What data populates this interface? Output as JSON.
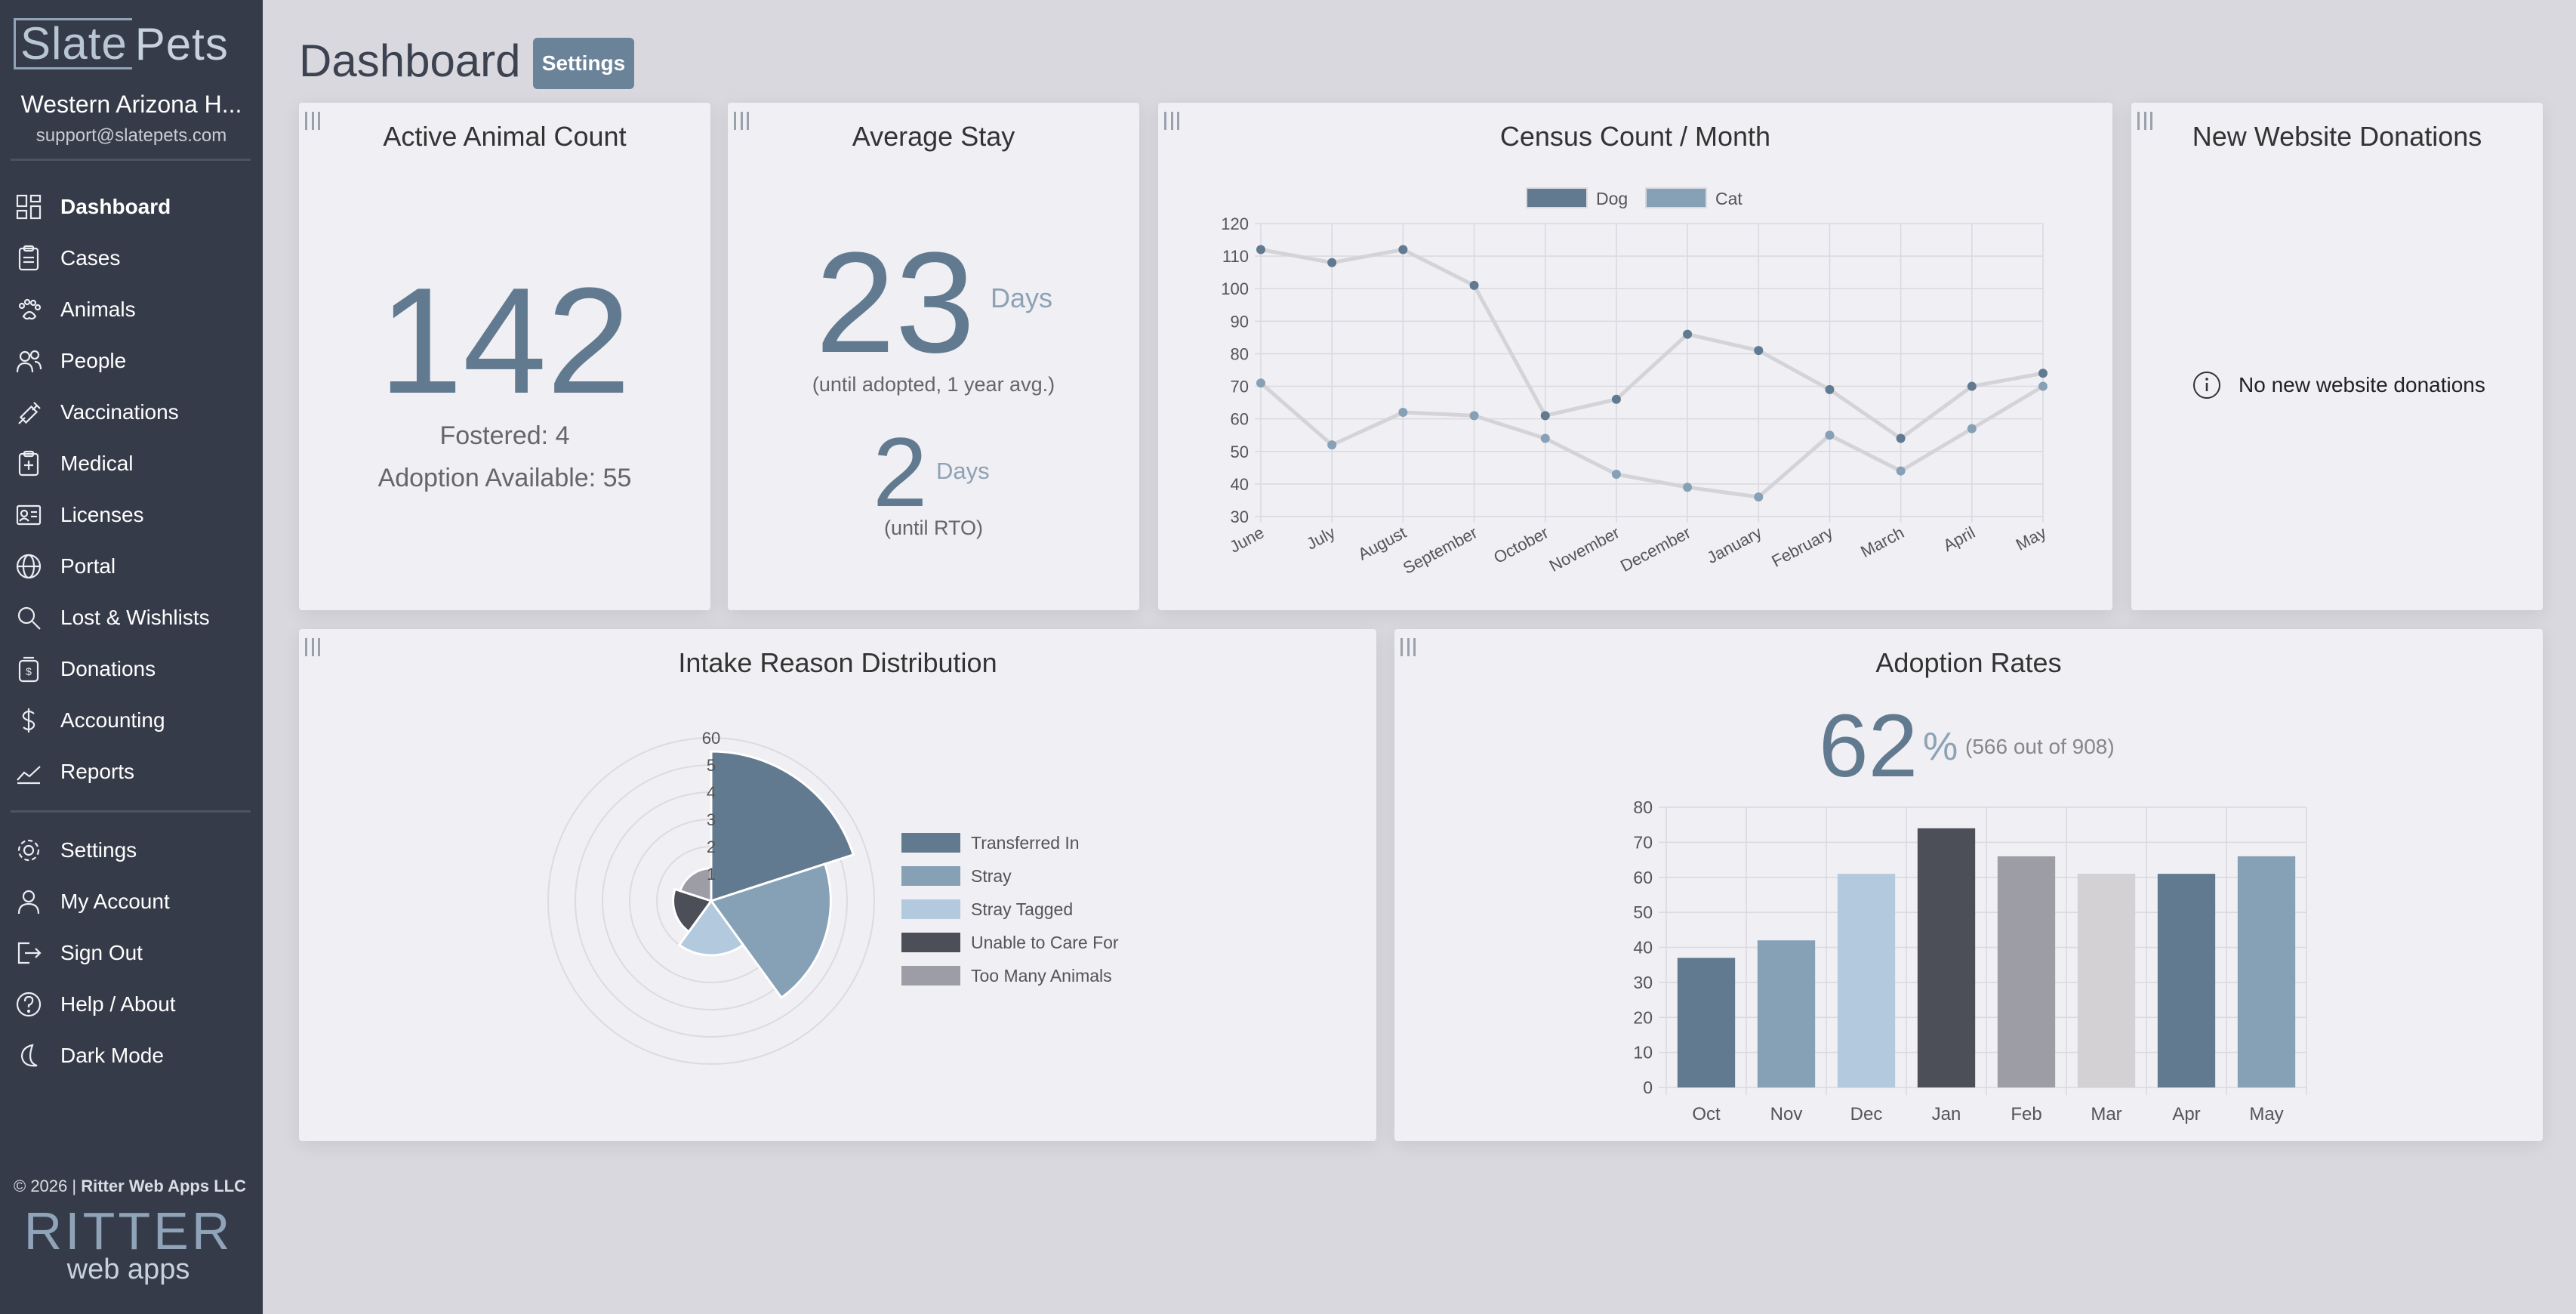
{
  "sidebar": {
    "logo_left": "Slate",
    "logo_right": "Pets",
    "org_name": "Western Arizona H...",
    "org_email": "support@slatepets.com",
    "nav": [
      {
        "label": "Dashboard",
        "icon": "dashboard-icon"
      },
      {
        "label": "Cases",
        "icon": "clipboard-icon"
      },
      {
        "label": "Animals",
        "icon": "paw-icon"
      },
      {
        "label": "People",
        "icon": "people-icon"
      },
      {
        "label": "Vaccinations",
        "icon": "syringe-icon"
      },
      {
        "label": "Medical",
        "icon": "medical-icon"
      },
      {
        "label": "Licenses",
        "icon": "license-icon"
      },
      {
        "label": "Portal",
        "icon": "globe-icon"
      },
      {
        "label": "Lost & Wishlists",
        "icon": "search-icon"
      },
      {
        "label": "Donations",
        "icon": "donation-icon"
      },
      {
        "label": "Accounting",
        "icon": "dollar-icon"
      },
      {
        "label": "Reports",
        "icon": "chart-icon"
      }
    ],
    "nav2": [
      {
        "label": "Settings",
        "icon": "gear-icon"
      },
      {
        "label": "My Account",
        "icon": "user-icon"
      },
      {
        "label": "Sign Out",
        "icon": "sign-out-icon"
      },
      {
        "label": "Help / About",
        "icon": "help-icon"
      },
      {
        "label": "Dark Mode",
        "icon": "moon-icon"
      }
    ],
    "copyright_prefix": "© 2026 | ",
    "copyright_company": "Ritter Web Apps LLC",
    "brand_big": "RITTER",
    "brand_small": "web apps"
  },
  "header": {
    "title": "Dashboard",
    "settings_label": "Settings"
  },
  "cards": {
    "active": {
      "title": "Active Animal Count",
      "count": "142",
      "fostered": "Fostered: 4",
      "adoption": "Adoption Available: 55"
    },
    "stay": {
      "title": "Average Stay",
      "adopted_days": "23",
      "adopted_unit": "Days",
      "adopted_note": "(until adopted, 1 year avg.)",
      "rto_days": "2",
      "rto_unit": "Days",
      "rto_note": "(until RTO)"
    },
    "census": {
      "title": "Census Count / Month"
    },
    "donations": {
      "title": "New Website Donations",
      "empty_text": "No new website donations"
    },
    "intake": {
      "title": "Intake Reason Distribution"
    },
    "adoption_rates": {
      "title": "Adoption Rates",
      "percent": "62",
      "percent_sign": "%",
      "detail": "(566 out of 908)"
    }
  },
  "chart_data": [
    {
      "type": "line",
      "title": "Census Count / Month",
      "x": [
        "June",
        "July",
        "August",
        "September",
        "October",
        "November",
        "December",
        "January",
        "February",
        "March",
        "April",
        "May"
      ],
      "ylim": [
        30,
        120
      ],
      "yticks": [
        30,
        40,
        50,
        60,
        70,
        80,
        90,
        100,
        110,
        120
      ],
      "grid": true,
      "legend": "top",
      "series": [
        {
          "name": "Dog",
          "color": "#627a8f",
          "values": [
            112,
            108,
            112,
            101,
            61,
            66,
            86,
            81,
            69,
            54,
            70,
            74
          ]
        },
        {
          "name": "Cat",
          "color": "#86a0b6",
          "values": [
            71,
            52,
            62,
            61,
            54,
            43,
            39,
            36,
            55,
            44,
            57,
            70
          ]
        }
      ]
    },
    {
      "type": "pie",
      "subtype": "polar-area",
      "title": "Intake Reason Distribution",
      "radial_ticks": [
        "1",
        "2",
        "3",
        "4",
        "5",
        "60"
      ],
      "legend": "right",
      "series": [
        {
          "name": "Transferred In",
          "color": "#627a8f",
          "value": 55
        },
        {
          "name": "Stray",
          "color": "#86a0b6",
          "value": 44
        },
        {
          "name": "Stray Tagged",
          "color": "#b3c9dd",
          "value": 20
        },
        {
          "name": "Unable to Care For",
          "color": "#4d4f58",
          "value": 14
        },
        {
          "name": "Too Many Animals",
          "color": "#9d9da5",
          "value": 12
        }
      ]
    },
    {
      "type": "bar",
      "title": "Adoption Rates",
      "categories": [
        "Oct",
        "Nov",
        "Dec",
        "Jan",
        "Feb",
        "Mar",
        "Apr",
        "May"
      ],
      "values": [
        37,
        42,
        61,
        74,
        66,
        61,
        61,
        66
      ],
      "colors": [
        "#627a8f",
        "#86a0b6",
        "#b3c9dd",
        "#4d4f58",
        "#9d9da5",
        "#d3d1d3",
        "#627a8f",
        "#86a0b6"
      ],
      "ylim": [
        0,
        80
      ],
      "yticks": [
        0,
        10,
        20,
        30,
        40,
        50,
        60,
        70,
        80
      ],
      "grid": true
    }
  ]
}
